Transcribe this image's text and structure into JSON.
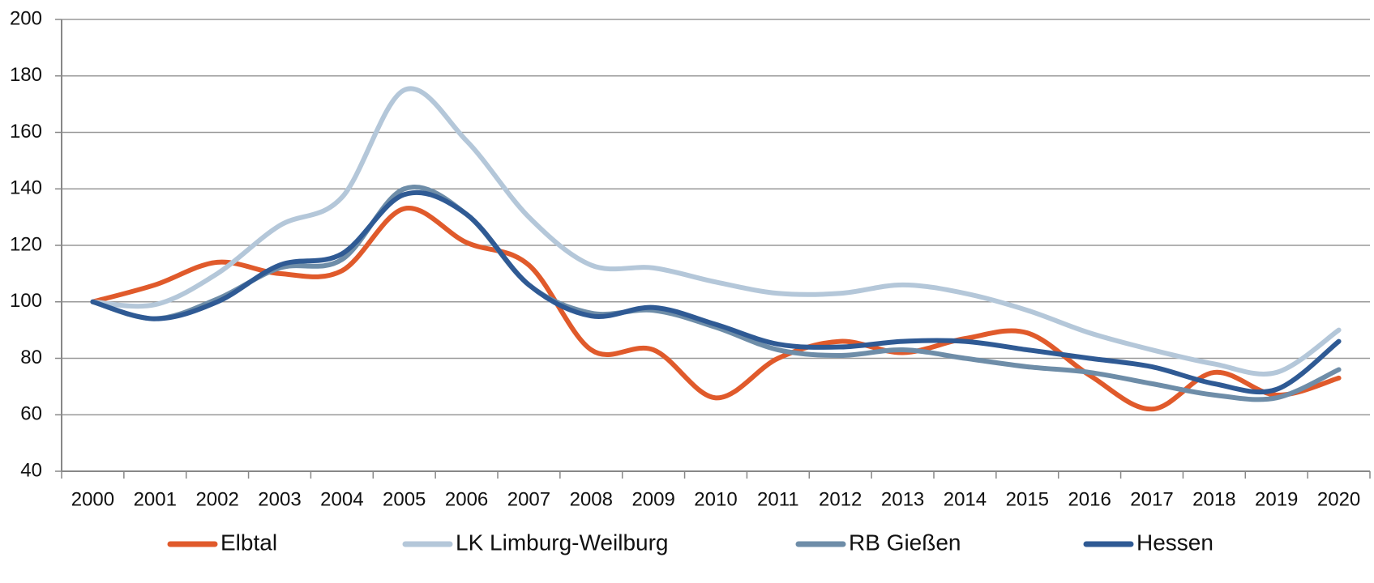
{
  "chart_data": {
    "type": "line",
    "categories": [
      "2000",
      "2001",
      "2002",
      "2003",
      "2004",
      "2005",
      "2006",
      "2007",
      "2008",
      "2009",
      "2010",
      "2011",
      "2012",
      "2013",
      "2014",
      "2015",
      "2016",
      "2017",
      "2018",
      "2019",
      "2020"
    ],
    "series": [
      {
        "name": "Elbtal",
        "color": "#e05a2b",
        "values": [
          100,
          106,
          114,
          110,
          111,
          133,
          121,
          113,
          83,
          83,
          66,
          80,
          86,
          82,
          87,
          89,
          74,
          62,
          75,
          67,
          73
        ]
      },
      {
        "name": "LK Limburg-Weilburg",
        "color": "#b4c7d9",
        "values": [
          100,
          99,
          110,
          127,
          137,
          175,
          157,
          130,
          113,
          112,
          107,
          103,
          103,
          106,
          103,
          97,
          89,
          83,
          78,
          75,
          90
        ]
      },
      {
        "name": "RB Gießen",
        "color": "#6e8da8",
        "values": [
          100,
          94,
          101,
          112,
          115,
          140,
          131,
          106,
          96,
          97,
          91,
          83,
          81,
          83,
          80,
          77,
          75,
          71,
          67,
          66,
          76
        ]
      },
      {
        "name": "Hessen",
        "color": "#2f5a94",
        "values": [
          100,
          94,
          100,
          113,
          117,
          138,
          131,
          106,
          95,
          98,
          92,
          85,
          84,
          86,
          86,
          83,
          80,
          77,
          71,
          69,
          86
        ]
      }
    ],
    "ylim": [
      40,
      200
    ],
    "yticks": [
      40,
      60,
      80,
      100,
      120,
      140,
      160,
      180,
      200
    ],
    "grid": true
  }
}
